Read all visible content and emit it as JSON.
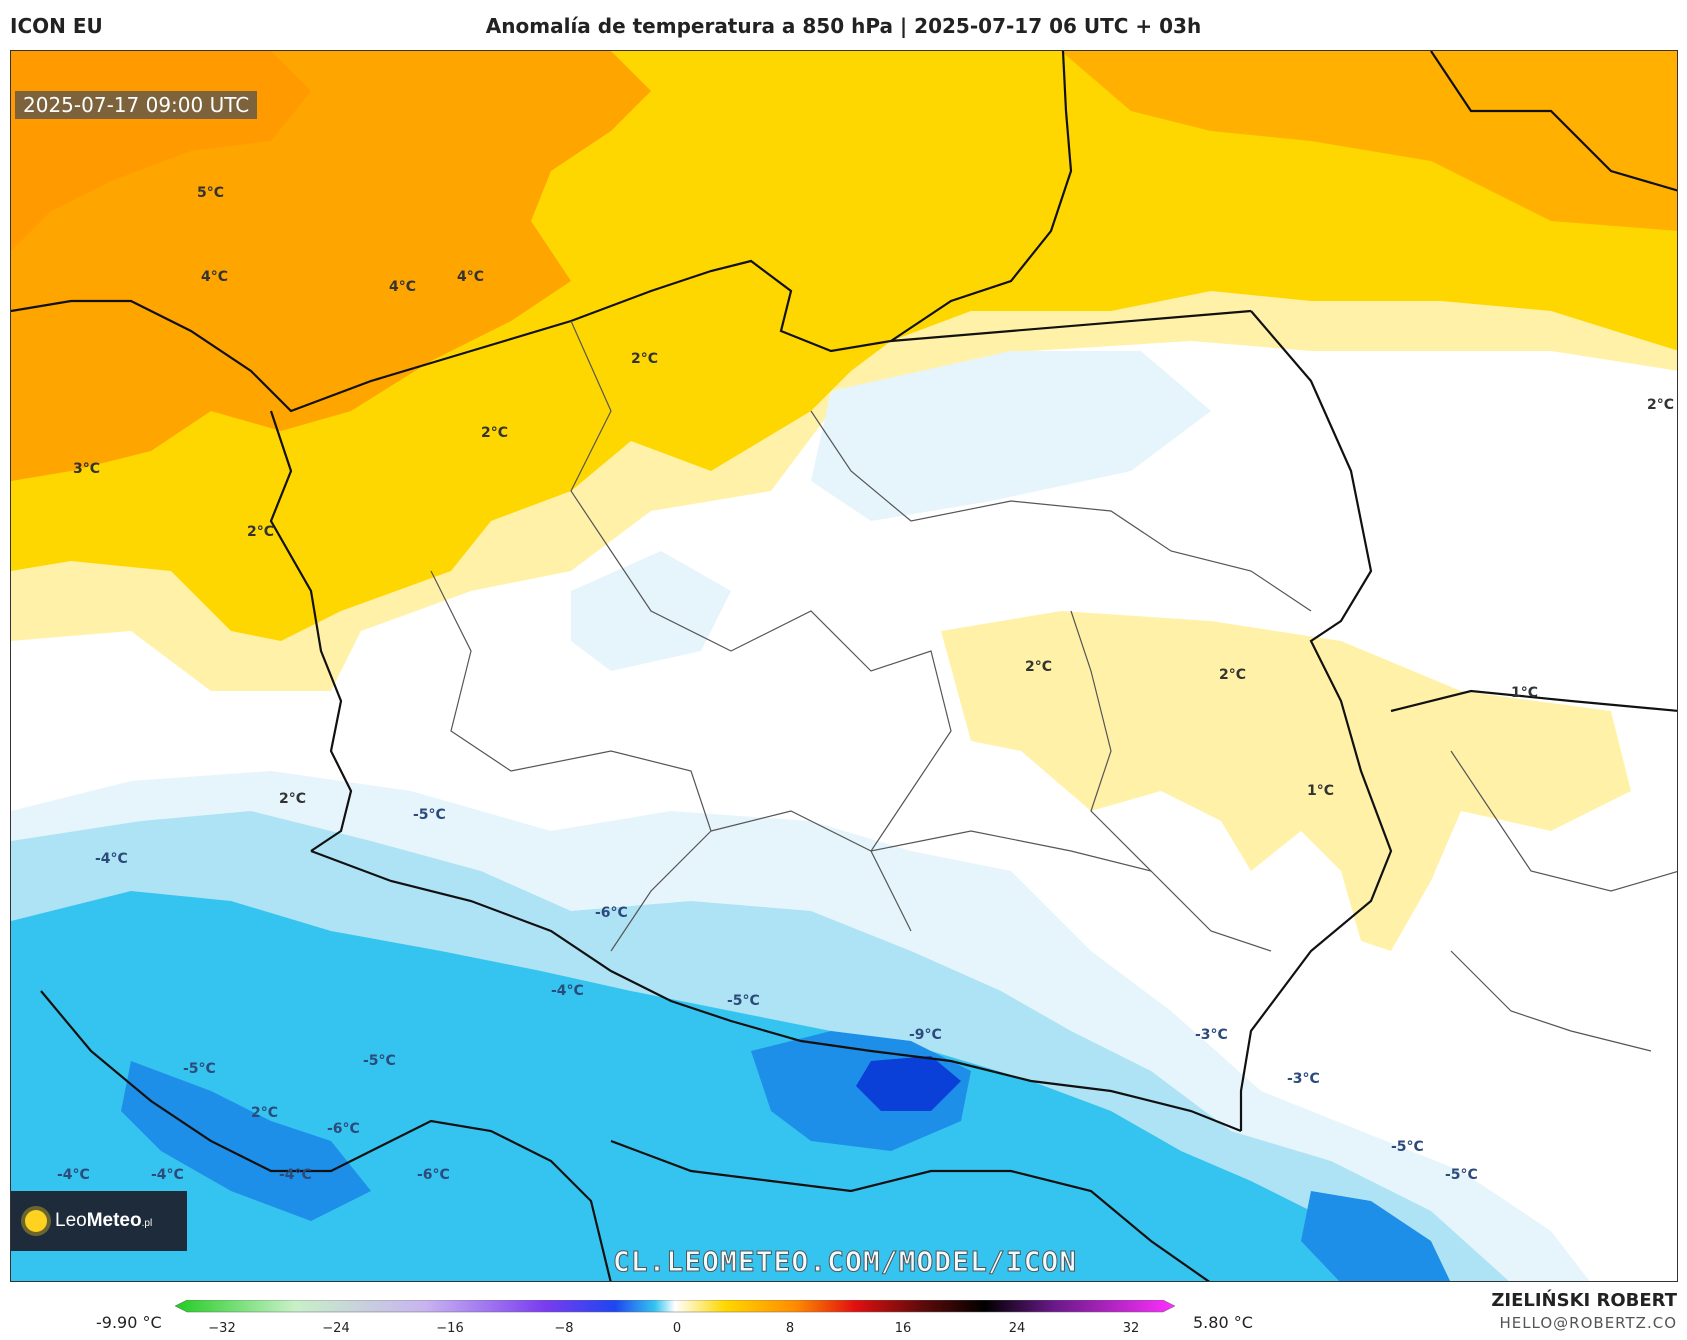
{
  "header": {
    "model": "ICON EU",
    "title": "Anomalía de temperatura a 850 hPa | 2025-07-17 06 UTC + 03h"
  },
  "map": {
    "valid_time": "2025-07-17 09:00 UTC",
    "watermark": "CL.LEOMETEO.COM/MODEL/ICON",
    "logo": {
      "brand_light": "Leo",
      "brand_bold": "Meteo",
      "suffix": ".pl"
    },
    "contour_labels": [
      "5°C",
      "4°C",
      "4°C",
      "4°C",
      "2°C",
      "2°C",
      "3°C",
      "2°C",
      "2°C",
      "2°C",
      "2°C",
      "1°C",
      "1°C",
      "2°C",
      "2°C",
      "-5°C",
      "-4°C",
      "-6°C",
      "-4°C",
      "-5°C",
      "-9°C",
      "-3°C",
      "-3°C",
      "-5°C",
      "-5°C",
      "-6°C",
      "-4°C",
      "-4°C",
      "-4°C",
      "-6°C",
      "-5°C",
      "-5°C"
    ]
  },
  "legend": {
    "min_label": "-9.90 °C",
    "max_label": "5.80 °C",
    "ticks": [
      "−32",
      "−24",
      "−16",
      "−8",
      "0",
      "8",
      "16",
      "24",
      "32"
    ],
    "colors": {
      "warm_orange": "#ffa500",
      "warm_yellow": "#ffd700",
      "pale_yellow": "#fff2a8",
      "white": "#ffffff",
      "pale_blue": "#e6f5fc",
      "light_blue": "#aee3f5",
      "cyan": "#35c4f0",
      "blue": "#1e8fe8",
      "deep_blue": "#0a3fd8"
    }
  },
  "credits": {
    "author": "ZIELIŃSKI ROBERT",
    "email": "HELLO@ROBERTZ.CO"
  }
}
